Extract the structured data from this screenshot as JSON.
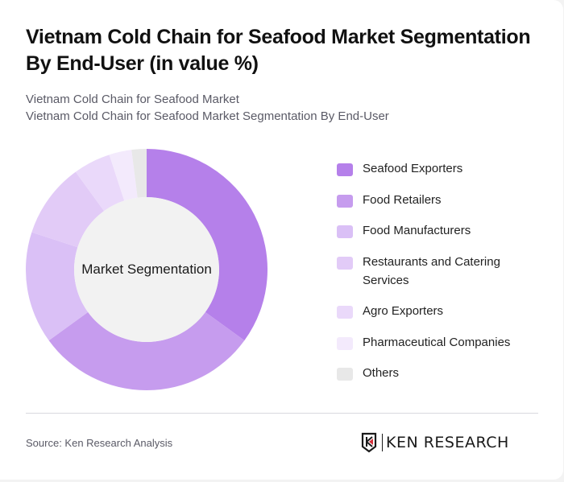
{
  "header": {
    "title": "Vietnam Cold Chain for Seafood Market Segmentation By End-User (in value %)",
    "subtitle_line1": "Vietnam Cold Chain for Seafood Market",
    "subtitle_line2": "Vietnam Cold Chain for Seafood Market Segmentation By End-User"
  },
  "chart": {
    "center_label": "Market Segmentation"
  },
  "legend": {
    "items": [
      {
        "label": "Seafood Exporters",
        "color": "#b580ea"
      },
      {
        "label": "Food Retailers",
        "color": "#c69cee"
      },
      {
        "label": "Food Manufacturers",
        "color": "#dac0f6"
      },
      {
        "label": "Restaurants and Catering Services",
        "color": "#e2cbf7"
      },
      {
        "label": "Agro Exporters",
        "color": "#ead9fa"
      },
      {
        "label": "Pharmaceutical Companies",
        "color": "#f3eafc"
      },
      {
        "label": "Others",
        "color": "#e8e8e8"
      }
    ]
  },
  "footer": {
    "source": "Source: Ken Research Analysis",
    "logo_text": "KEN RESEARCH"
  },
  "chart_data": {
    "type": "pie",
    "variant": "donut",
    "title": "Vietnam Cold Chain for Seafood Market Segmentation By End-User (in value %)",
    "center_label": "Market Segmentation",
    "categories": [
      "Seafood Exporters",
      "Food Retailers",
      "Food Manufacturers",
      "Restaurants and Catering Services",
      "Agro Exporters",
      "Pharmaceutical Companies",
      "Others"
    ],
    "values": [
      35,
      30,
      15,
      10,
      5,
      3,
      2
    ],
    "colors": [
      "#b580ea",
      "#c69cee",
      "#dac0f6",
      "#e2cbf7",
      "#ead9fa",
      "#f3eafc",
      "#e8e8e8"
    ],
    "unit": "%",
    "legend_position": "right",
    "start_angle": "12 o'clock, clockwise"
  }
}
